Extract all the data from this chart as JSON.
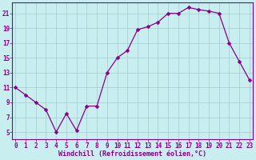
{
  "x": [
    0,
    1,
    2,
    3,
    4,
    5,
    6,
    7,
    8,
    9,
    10,
    11,
    12,
    13,
    14,
    15,
    16,
    17,
    18,
    19,
    20,
    21,
    22,
    23
  ],
  "y": [
    11,
    10,
    9,
    8,
    5,
    7.5,
    5.2,
    8.5,
    8.5,
    13,
    15,
    16,
    18.8,
    19.2,
    19.8,
    21,
    21,
    21.8,
    21.5,
    21.3,
    21,
    17,
    14.5,
    12
  ],
  "line_color": "#880088",
  "marker": "D",
  "marker_size": 2.5,
  "bg_color": "#c8eef0",
  "grid_color": "#a0ccd0",
  "xlabel": "Windchill (Refroidissement éolien,°C)",
  "tick_color": "#880088",
  "label_color": "#880088",
  "yticks": [
    5,
    7,
    9,
    11,
    13,
    15,
    17,
    19,
    21
  ],
  "xticks": [
    0,
    1,
    2,
    3,
    4,
    5,
    6,
    7,
    8,
    9,
    10,
    11,
    12,
    13,
    14,
    15,
    16,
    17,
    18,
    19,
    20,
    21,
    22,
    23
  ],
  "ylim": [
    4.0,
    22.5
  ],
  "xlim": [
    -0.3,
    23.3
  ],
  "figsize": [
    3.2,
    2.0
  ],
  "dpi": 100
}
